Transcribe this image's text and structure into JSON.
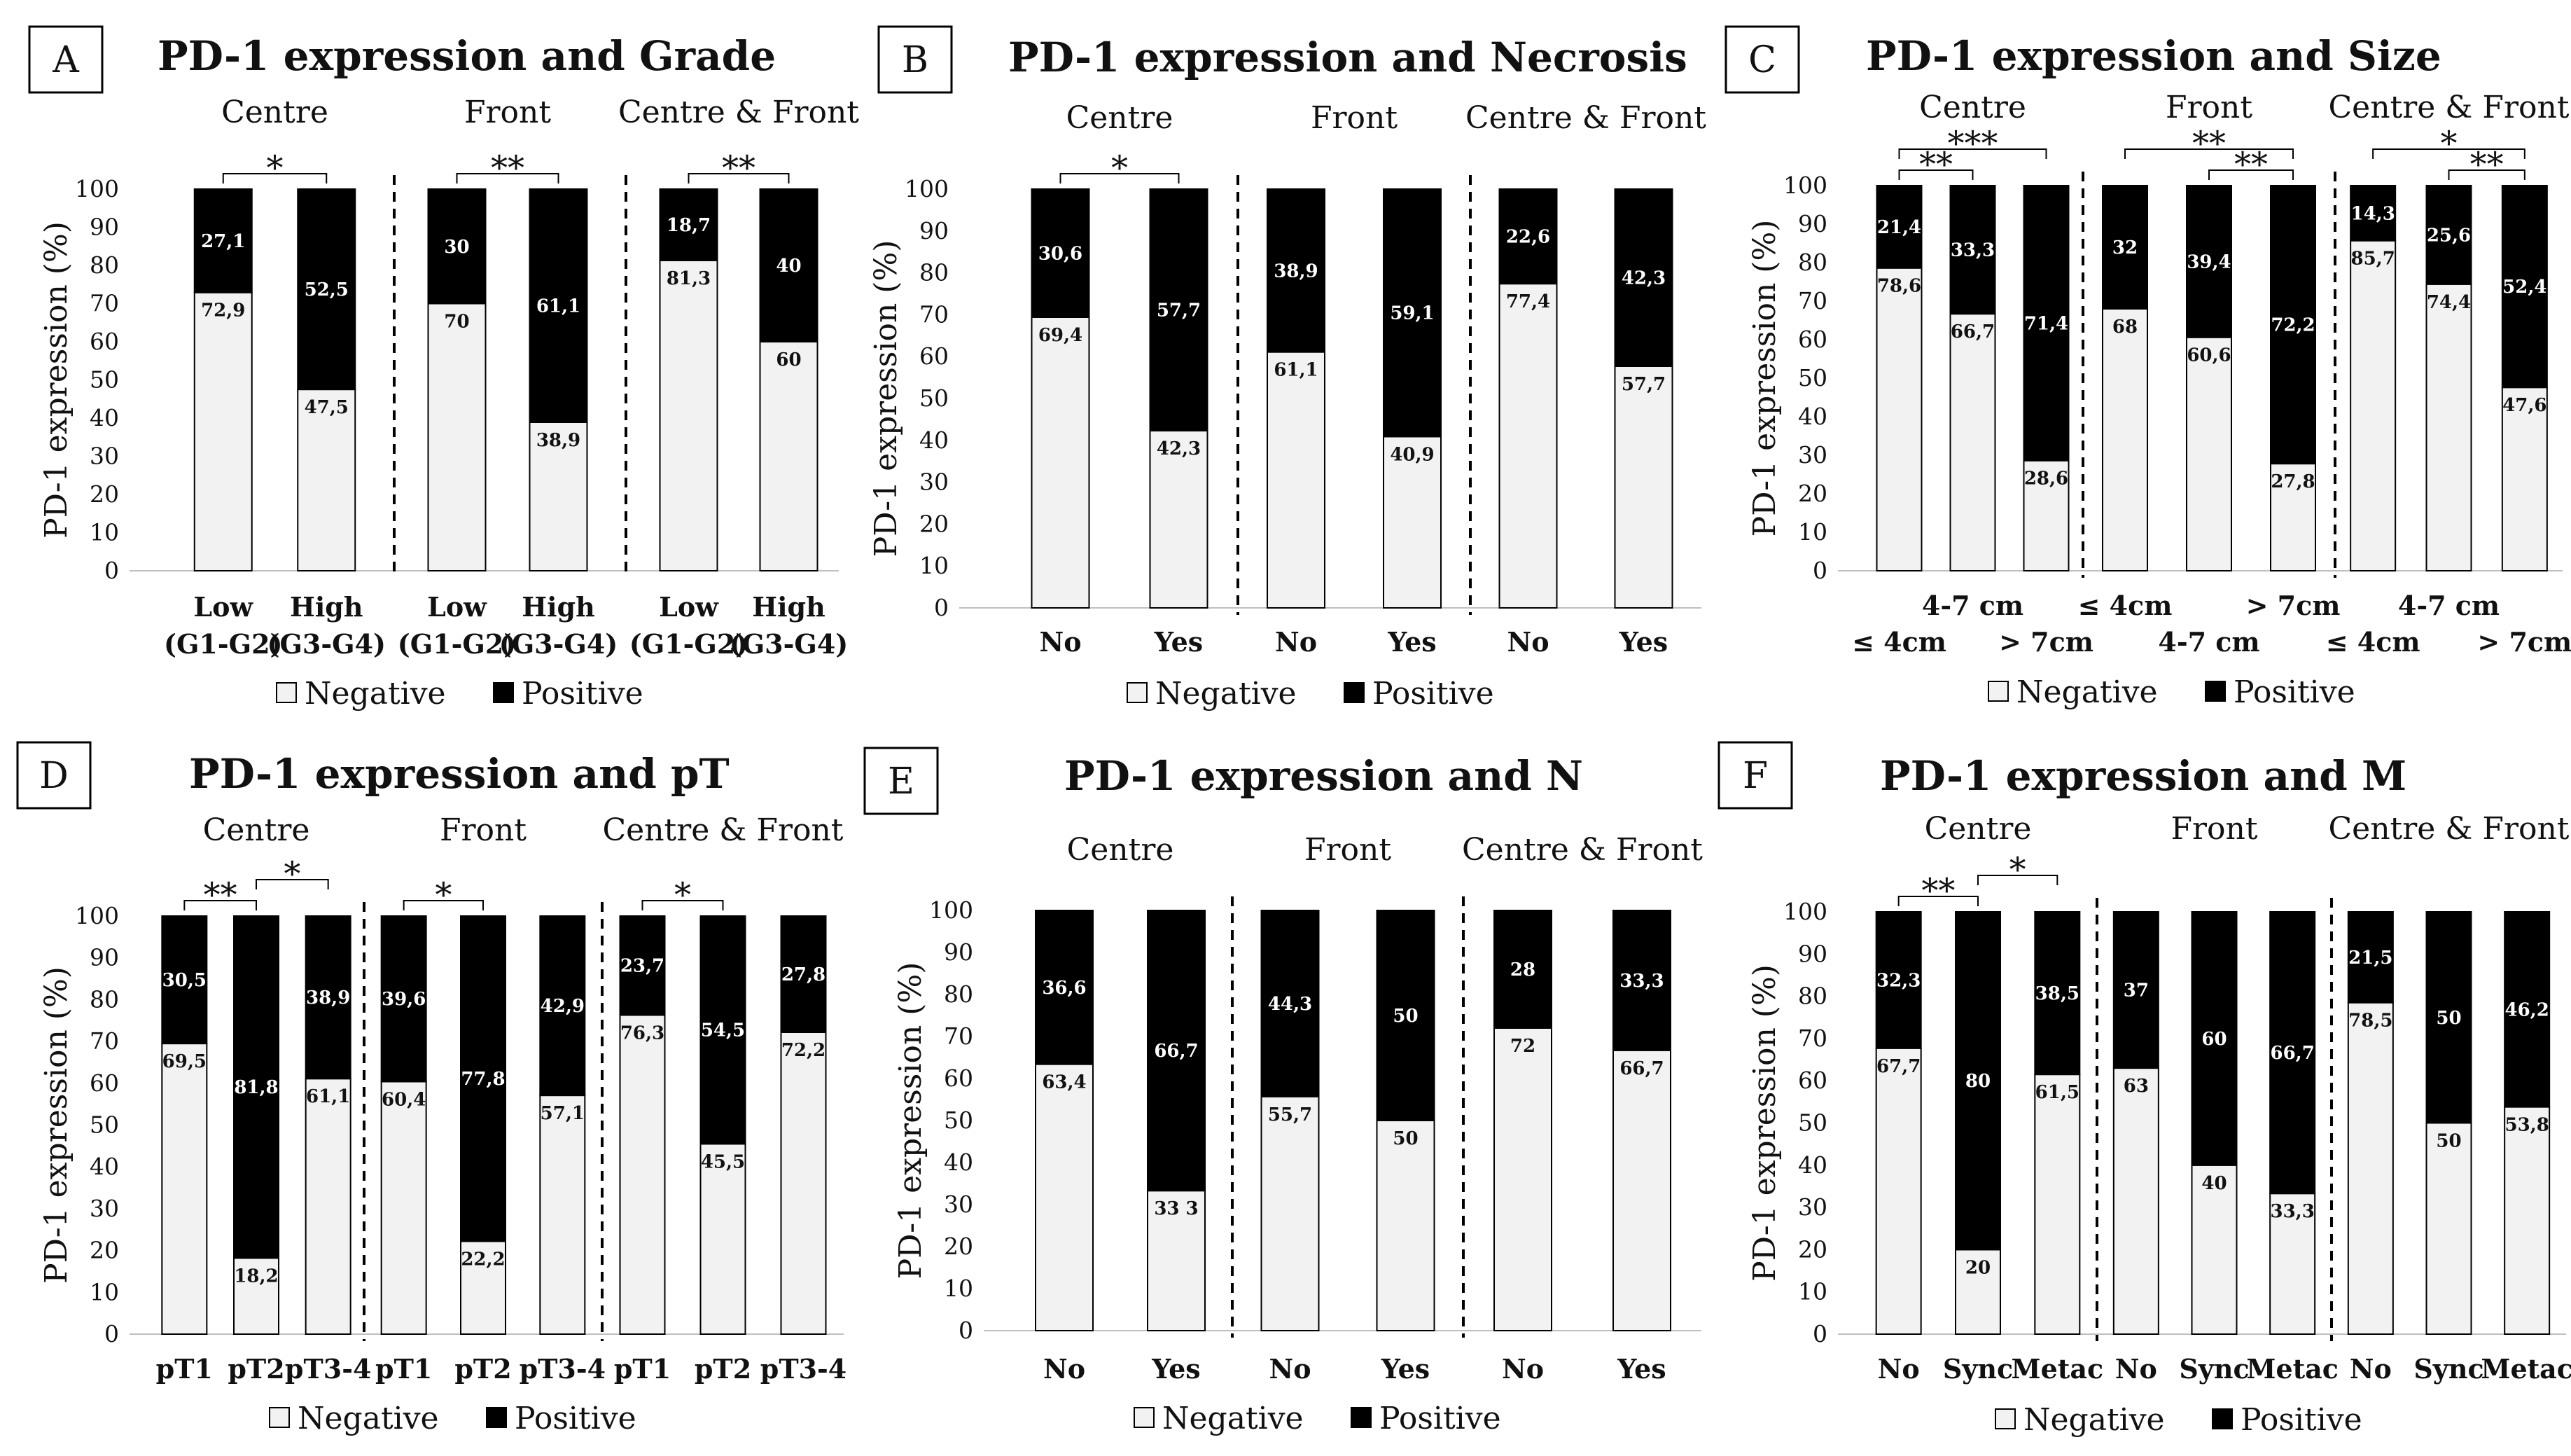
{
  "legend": {
    "negative": "Negative",
    "positive": "Positive"
  },
  "y_axis": {
    "label": "PD-1 expression (%)",
    "ticks": [
      0,
      10,
      20,
      30,
      40,
      50,
      60,
      70,
      80,
      90,
      100
    ]
  },
  "colors": {
    "negative": "#f2f2f2",
    "positive": "#000000",
    "outline": "#000000"
  },
  "chart_data": [
    {
      "type": "bar",
      "stacked": true,
      "panel": "A",
      "title": "PD-1 expression and Grade",
      "ylabel": "PD-1 expression (%)",
      "ylim": [
        0,
        100
      ],
      "groups": [
        {
          "name": "Centre",
          "categories": [
            {
              "line1": "Low",
              "line2": "(G1-G2)"
            },
            {
              "line1": "High",
              "line2": "(G3-G4)"
            }
          ],
          "negative": [
            72.9,
            47.5
          ],
          "positive": [
            27.1,
            52.5
          ],
          "neg_labels": [
            "72,9",
            "47,5"
          ],
          "pos_labels": [
            "27,1",
            "52,5"
          ],
          "significance": [
            {
              "from": 0,
              "to": 1,
              "label": "*"
            }
          ]
        },
        {
          "name": "Front",
          "categories": [
            {
              "line1": "Low",
              "line2": "(G1-G2)"
            },
            {
              "line1": "High",
              "line2": "(G3-G4)"
            }
          ],
          "negative": [
            70,
            38.9
          ],
          "positive": [
            30,
            61.1
          ],
          "neg_labels": [
            "70",
            "38,9"
          ],
          "pos_labels": [
            "30",
            "61,1"
          ],
          "significance": [
            {
              "from": 0,
              "to": 1,
              "label": "**"
            }
          ]
        },
        {
          "name": "Centre & Front",
          "categories": [
            {
              "line1": "Low",
              "line2": "(G1-G2)"
            },
            {
              "line1": "High",
              "line2": "(G3-G4)"
            }
          ],
          "negative": [
            81.3,
            60
          ],
          "positive": [
            18.7,
            40
          ],
          "neg_labels": [
            "81,3",
            "60"
          ],
          "pos_labels": [
            "18,7",
            "40"
          ],
          "significance": [
            {
              "from": 0,
              "to": 1,
              "label": "**"
            }
          ]
        }
      ]
    },
    {
      "type": "bar",
      "stacked": true,
      "panel": "B",
      "title": "PD-1 expression and Necrosis",
      "ylabel": "PD-1 expression (%)",
      "ylim": [
        0,
        100
      ],
      "groups": [
        {
          "name": "Centre",
          "categories": [
            {
              "line1": "No",
              "line2": ""
            },
            {
              "line1": "Yes",
              "line2": ""
            }
          ],
          "negative": [
            69.4,
            42.3
          ],
          "positive": [
            30.6,
            57.7
          ],
          "neg_labels": [
            "69,4",
            "42,3"
          ],
          "pos_labels": [
            "30,6",
            "57,7"
          ],
          "significance": [
            {
              "from": 0,
              "to": 1,
              "label": "*"
            }
          ]
        },
        {
          "name": "Front",
          "categories": [
            {
              "line1": "No",
              "line2": ""
            },
            {
              "line1": "Yes",
              "line2": ""
            }
          ],
          "negative": [
            61.1,
            40.9
          ],
          "positive": [
            38.9,
            59.1
          ],
          "neg_labels": [
            "61,1",
            "40,9"
          ],
          "pos_labels": [
            "38,9",
            "59,1"
          ],
          "significance": []
        },
        {
          "name": "Centre & Front",
          "categories": [
            {
              "line1": "No",
              "line2": ""
            },
            {
              "line1": "Yes",
              "line2": ""
            }
          ],
          "negative": [
            77.4,
            57.7
          ],
          "positive": [
            22.6,
            42.3
          ],
          "neg_labels": [
            "77,4",
            "57,7"
          ],
          "pos_labels": [
            "22,6",
            "42,3"
          ],
          "significance": []
        }
      ]
    },
    {
      "type": "bar",
      "stacked": true,
      "panel": "C",
      "title": "PD-1 expression and Size",
      "ylabel": "PD-1 expression (%)",
      "ylim": [
        0,
        100
      ],
      "groups": [
        {
          "name": "Centre",
          "categories": [
            {
              "line1": "",
              "line2": "≤ 4cm"
            },
            {
              "line1": "4-7 cm",
              "line2": ""
            },
            {
              "line1": "",
              "line2": "> 7cm"
            }
          ],
          "negative": [
            78.6,
            66.7,
            28.6
          ],
          "positive": [
            21.4,
            33.3,
            71.4
          ],
          "neg_labels": [
            "78,6",
            "66,7",
            "28,6"
          ],
          "pos_labels": [
            "21,4",
            "33,3",
            "71,4"
          ],
          "significance": [
            {
              "from": 0,
              "to": 1,
              "label": "**"
            },
            {
              "from": 0,
              "to": 2,
              "label": "***"
            }
          ]
        },
        {
          "name": "Front",
          "categories": [
            {
              "line1": "≤ 4cm",
              "line2": ""
            },
            {
              "line1": "",
              "line2": "4-7 cm"
            },
            {
              "line1": "> 7cm",
              "line2": ""
            }
          ],
          "negative": [
            68,
            60.6,
            27.8
          ],
          "positive": [
            32,
            39.4,
            72.2
          ],
          "neg_labels": [
            "68",
            "60,6",
            "27,8"
          ],
          "pos_labels": [
            "32",
            "39,4",
            "72,2"
          ],
          "significance": [
            {
              "from": 1,
              "to": 2,
              "label": "**"
            },
            {
              "from": 0,
              "to": 2,
              "label": "**"
            }
          ]
        },
        {
          "name": "Centre & Front",
          "categories": [
            {
              "line1": "",
              "line2": "≤ 4cm"
            },
            {
              "line1": "4-7 cm",
              "line2": ""
            },
            {
              "line1": "",
              "line2": "> 7cm"
            }
          ],
          "negative": [
            85.7,
            74.4,
            47.6
          ],
          "positive": [
            14.3,
            25.6,
            52.4
          ],
          "neg_labels": [
            "85,7",
            "74,4",
            "47,6"
          ],
          "pos_labels": [
            "14,3",
            "25,6",
            "52,4"
          ],
          "significance": [
            {
              "from": 1,
              "to": 2,
              "label": "**"
            },
            {
              "from": 0,
              "to": 2,
              "label": "*"
            }
          ]
        }
      ]
    },
    {
      "type": "bar",
      "stacked": true,
      "panel": "D",
      "title": "PD-1 expression and pT",
      "ylabel": "PD-1 expression (%)",
      "ylim": [
        0,
        100
      ],
      "groups": [
        {
          "name": "Centre",
          "categories": [
            {
              "line1": "pT1",
              "line2": ""
            },
            {
              "line1": "pT2",
              "line2": ""
            },
            {
              "line1": "pT3-4",
              "line2": ""
            }
          ],
          "negative": [
            69.5,
            18.2,
            61.1
          ],
          "positive": [
            30.5,
            81.8,
            38.9
          ],
          "neg_labels": [
            "69,5",
            "18,2",
            "61,1"
          ],
          "pos_labels": [
            "30,5",
            "81,8",
            "38,9"
          ],
          "significance": [
            {
              "from": 0,
              "to": 1,
              "label": "**"
            },
            {
              "from": 1,
              "to": 2,
              "label": "*"
            }
          ]
        },
        {
          "name": "Front",
          "categories": [
            {
              "line1": "pT1",
              "line2": ""
            },
            {
              "line1": "pT2",
              "line2": ""
            },
            {
              "line1": "pT3-4",
              "line2": ""
            }
          ],
          "negative": [
            60.4,
            22.2,
            57.1
          ],
          "positive": [
            39.6,
            77.8,
            42.9
          ],
          "neg_labels": [
            "60,4",
            "22,2",
            "57,1"
          ],
          "pos_labels": [
            "39,6",
            "77,8",
            "42,9"
          ],
          "significance": [
            {
              "from": 0,
              "to": 1,
              "label": "*"
            }
          ]
        },
        {
          "name": "Centre & Front",
          "categories": [
            {
              "line1": "pT1",
              "line2": ""
            },
            {
              "line1": "pT2",
              "line2": ""
            },
            {
              "line1": "pT3-4",
              "line2": ""
            }
          ],
          "negative": [
            76.3,
            45.5,
            72.2
          ],
          "positive": [
            23.7,
            54.5,
            27.8
          ],
          "neg_labels": [
            "76,3",
            "45,5",
            "72,2"
          ],
          "pos_labels": [
            "23,7",
            "54,5",
            "27,8"
          ],
          "significance": [
            {
              "from": 0,
              "to": 1,
              "label": "*"
            }
          ]
        }
      ]
    },
    {
      "type": "bar",
      "stacked": true,
      "panel": "E",
      "title": "PD-1 expression and N",
      "ylabel": "PD-1 expression (%)",
      "ylim": [
        0,
        100
      ],
      "groups": [
        {
          "name": "Centre",
          "categories": [
            {
              "line1": "No",
              "line2": ""
            },
            {
              "line1": "Yes",
              "line2": ""
            }
          ],
          "negative": [
            63.4,
            33.3
          ],
          "positive": [
            36.6,
            66.7
          ],
          "neg_labels": [
            "63,4",
            "33 3"
          ],
          "pos_labels": [
            "36,6",
            "66,7"
          ],
          "significance": []
        },
        {
          "name": "Front",
          "categories": [
            {
              "line1": "No",
              "line2": ""
            },
            {
              "line1": "Yes",
              "line2": ""
            }
          ],
          "negative": [
            55.7,
            50
          ],
          "positive": [
            44.3,
            50
          ],
          "neg_labels": [
            "55,7",
            "50"
          ],
          "pos_labels": [
            "44,3",
            "50"
          ],
          "significance": []
        },
        {
          "name": "Centre & Front",
          "categories": [
            {
              "line1": "No",
              "line2": ""
            },
            {
              "line1": "Yes",
              "line2": ""
            }
          ],
          "negative": [
            72,
            66.7
          ],
          "positive": [
            28,
            33.3
          ],
          "neg_labels": [
            "72",
            "66,7"
          ],
          "pos_labels": [
            "28",
            "33,3"
          ],
          "significance": []
        }
      ]
    },
    {
      "type": "bar",
      "stacked": true,
      "panel": "F",
      "title": "PD-1 expression and M",
      "ylabel": "PD-1 expression (%)",
      "ylim": [
        0,
        100
      ],
      "groups": [
        {
          "name": "Centre",
          "categories": [
            {
              "line1": "No",
              "line2": ""
            },
            {
              "line1": "Sync",
              "line2": ""
            },
            {
              "line1": "Metac",
              "line2": ""
            }
          ],
          "negative": [
            67.7,
            20,
            61.5
          ],
          "positive": [
            32.3,
            80,
            38.5
          ],
          "neg_labels": [
            "67,7",
            "20",
            "61,5"
          ],
          "pos_labels": [
            "32,3",
            "80",
            "38,5"
          ],
          "significance": [
            {
              "from": 0,
              "to": 1,
              "label": "**"
            },
            {
              "from": 1,
              "to": 2,
              "label": "*"
            }
          ]
        },
        {
          "name": "Front",
          "categories": [
            {
              "line1": "No",
              "line2": ""
            },
            {
              "line1": "Sync",
              "line2": ""
            },
            {
              "line1": "Metac",
              "line2": ""
            }
          ],
          "negative": [
            63,
            40,
            33.3
          ],
          "positive": [
            37,
            60,
            66.7
          ],
          "neg_labels": [
            "63",
            "40",
            "33,3"
          ],
          "pos_labels": [
            "37",
            "60",
            "66,7"
          ],
          "significance": []
        },
        {
          "name": "Centre & Front",
          "categories": [
            {
              "line1": "No",
              "line2": ""
            },
            {
              "line1": "Sync",
              "line2": ""
            },
            {
              "line1": "Metac",
              "line2": ""
            }
          ],
          "negative": [
            78.5,
            50,
            53.8
          ],
          "positive": [
            21.5,
            50,
            46.2
          ],
          "neg_labels": [
            "78,5",
            "50",
            "53,8"
          ],
          "pos_labels": [
            "21,5",
            "50",
            "46,2"
          ],
          "significance": []
        }
      ]
    }
  ]
}
